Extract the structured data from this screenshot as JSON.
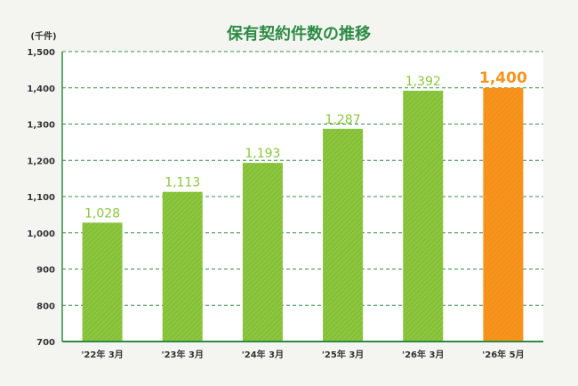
{
  "chart_data": {
    "type": "bar",
    "title": "保有契約件数の推移",
    "unit_label": "(千件)",
    "xlabel": "",
    "ylabel": "",
    "categories": [
      "'22年 3月",
      "'23年 3月",
      "'24年 3月",
      "'25年 3月",
      "'26年 3月",
      "'26年 5月"
    ],
    "values": [
      1028,
      1113,
      1193,
      1287,
      1392,
      1400
    ],
    "value_labels": [
      "1,028",
      "1,113",
      "1,193",
      "1,287",
      "1,392",
      "1,400"
    ],
    "ylim": [
      700,
      1500
    ],
    "yticks": [
      700,
      800,
      900,
      1000,
      1100,
      1200,
      1300,
      1400,
      1500
    ],
    "ytick_labels": [
      "700",
      "800",
      "900",
      "1,000",
      "1,100",
      "1,200",
      "1,300",
      "1,400",
      "1,500"
    ],
    "grid": "horizontal-dashed",
    "highlight_index": 5
  },
  "colors": {
    "background": "#f4f5f1",
    "plot_background": "#ffffff",
    "title": "#2e8b45",
    "axis": "#2e8b45",
    "gridline": "#3a8f4e",
    "bar": "#8cc63f",
    "bar_stripe": "#7ab52f",
    "bar_highlight": "#f7941d",
    "bar_highlight_stripe": "#f28a10",
    "value_label": "#8cc63f",
    "value_label_highlight": "#f7941d",
    "tick_text": "#333333"
  }
}
